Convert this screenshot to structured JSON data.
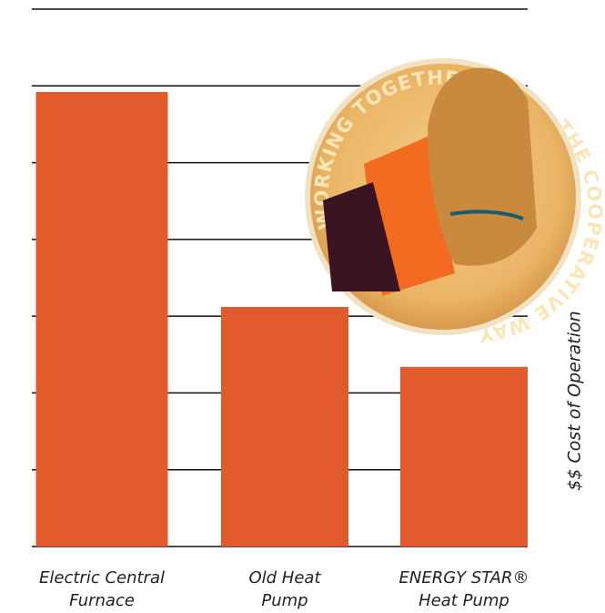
{
  "chart_data": {
    "type": "bar",
    "categories": [
      "Electric Central\nFurnace",
      "Old Heat\nPump",
      "ENERGY STAR®\nHeat Pump"
    ],
    "values": [
      5.92,
      3.12,
      2.34
    ],
    "color": "#e05a2b",
    "y_label": "$$ Cost of Operation",
    "ylim": [
      0,
      7
    ],
    "yticks": [
      0,
      1,
      2,
      3,
      4,
      5,
      6,
      7
    ],
    "grid": true
  },
  "badge": {
    "top": "WORKING TOGETHER",
    "bottom": "THE COOPERATIVE WAY"
  }
}
